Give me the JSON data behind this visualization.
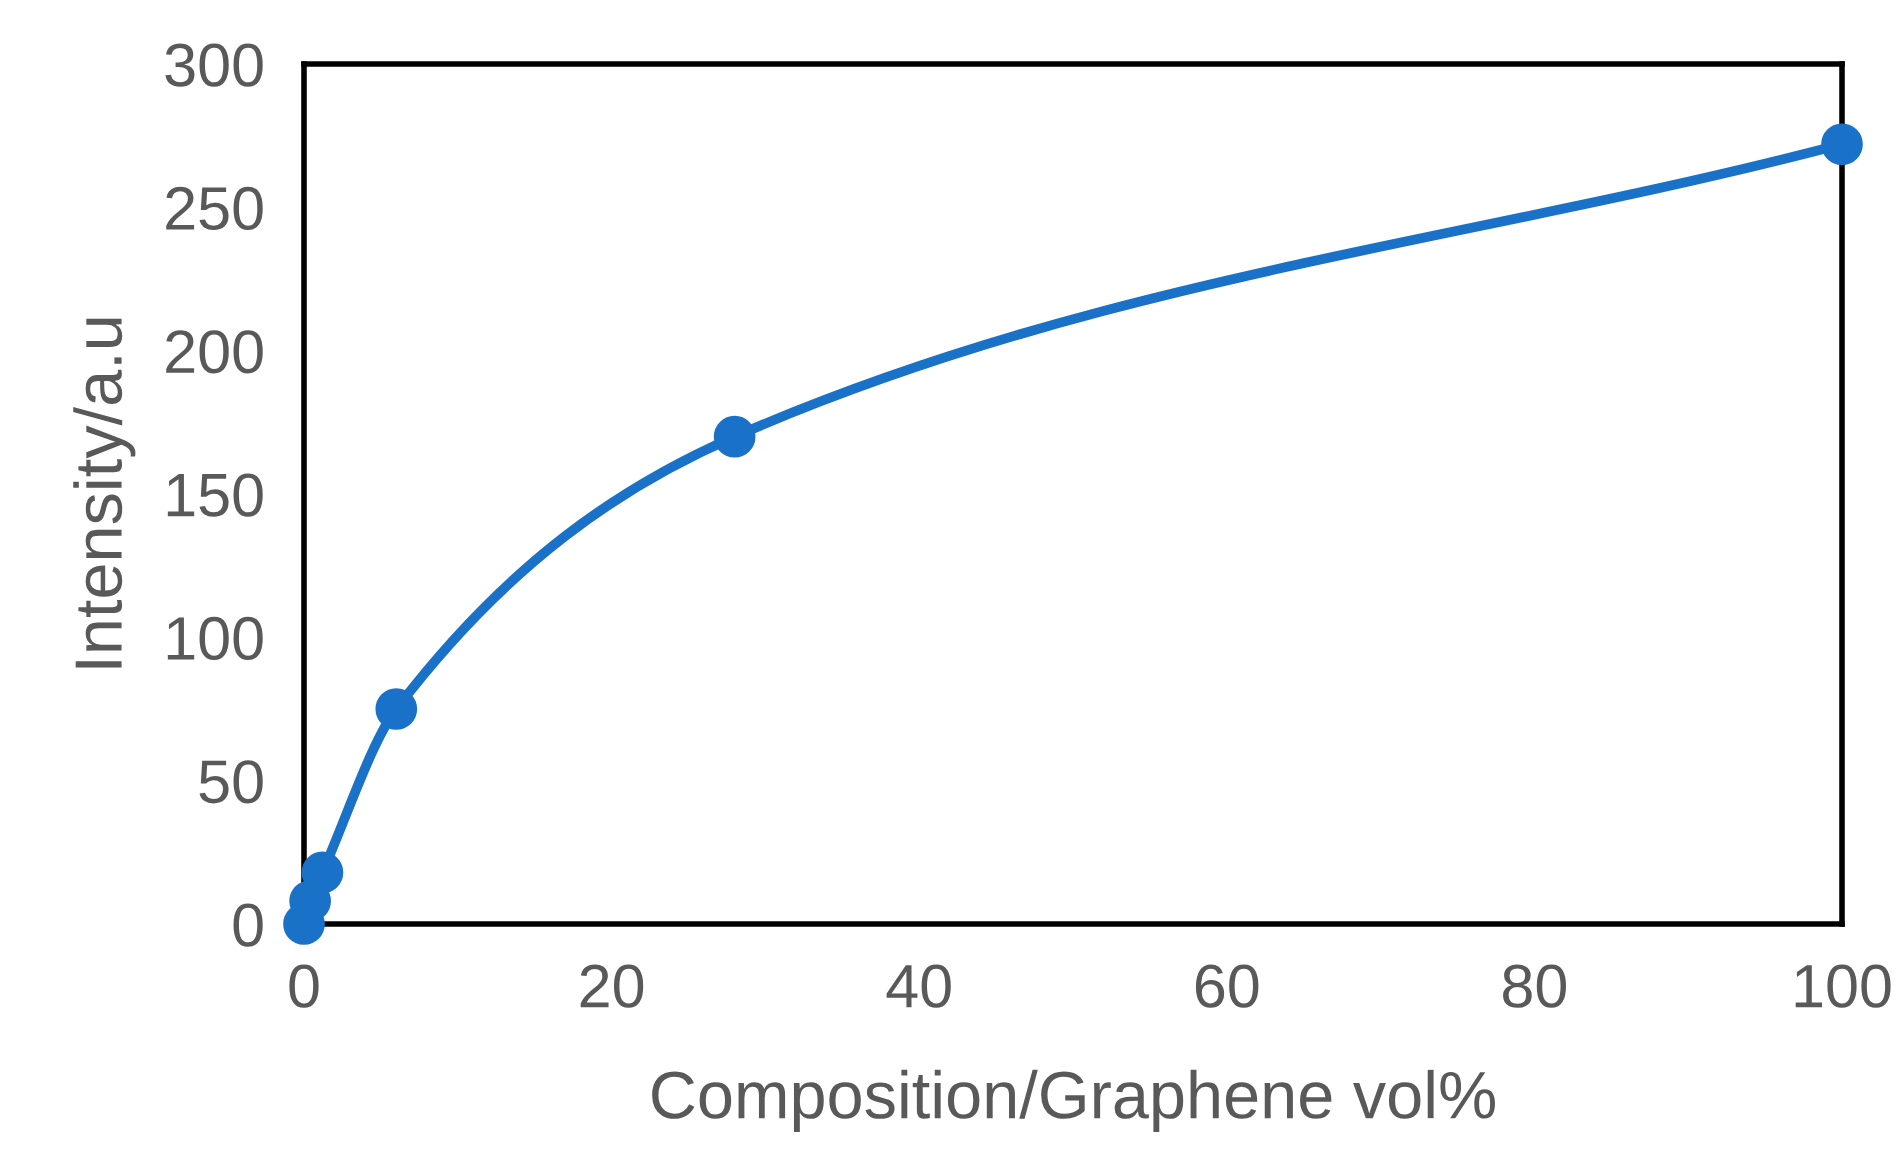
{
  "chart_data": {
    "type": "line",
    "xlabel": "Composition/Graphene vol%",
    "ylabel": "Intensity/a.u",
    "x": [
      0,
      0.4,
      1.2,
      6,
      28,
      100
    ],
    "series": [
      {
        "color": "#1a72c8",
        "values": [
          0,
          8,
          18,
          75,
          170,
          272
        ]
      }
    ],
    "xlim": [
      0,
      100
    ],
    "xticks": [
      0,
      20,
      40,
      60,
      80,
      100
    ],
    "ylim": [
      0,
      300
    ],
    "yticks": [
      0,
      50,
      100,
      150,
      200,
      250,
      300
    ],
    "grid": false,
    "marker": "circle",
    "line_style": "solid"
  }
}
